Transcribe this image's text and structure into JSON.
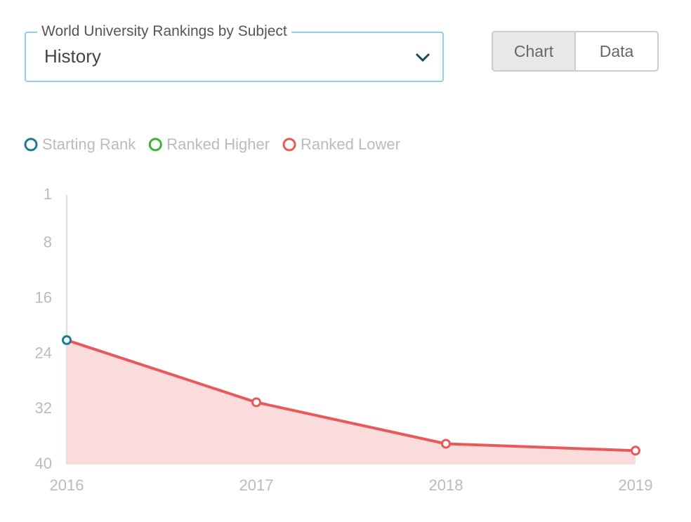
{
  "ui": {
    "dropdown_label": "World University Rankings by Subject",
    "dropdown_value": "History",
    "toggle": [
      "Chart",
      "Data"
    ],
    "active_toggle": 0
  },
  "chart_data": {
    "type": "line",
    "categories": [
      "2016",
      "2017",
      "2018",
      "2019"
    ],
    "series": [
      {
        "values": [
          22,
          31,
          37,
          38
        ],
        "color": "#e85a5a",
        "area_color": "#fbdcdc",
        "marker_colors": [
          "#1b7a9a",
          "#e85a5a",
          "#e85a5a",
          "#e85a5a"
        ]
      }
    ],
    "legend": [
      {
        "name": "Starting Rank",
        "color": "#1b7a9a"
      },
      {
        "name": "Ranked Higher",
        "color": "#3cb432"
      },
      {
        "name": "Ranked Lower",
        "color": "#e85a5a"
      }
    ],
    "ylim": [
      1,
      40
    ],
    "yticks": [
      1,
      8,
      16,
      24,
      32,
      40
    ],
    "y_inverted": true
  }
}
